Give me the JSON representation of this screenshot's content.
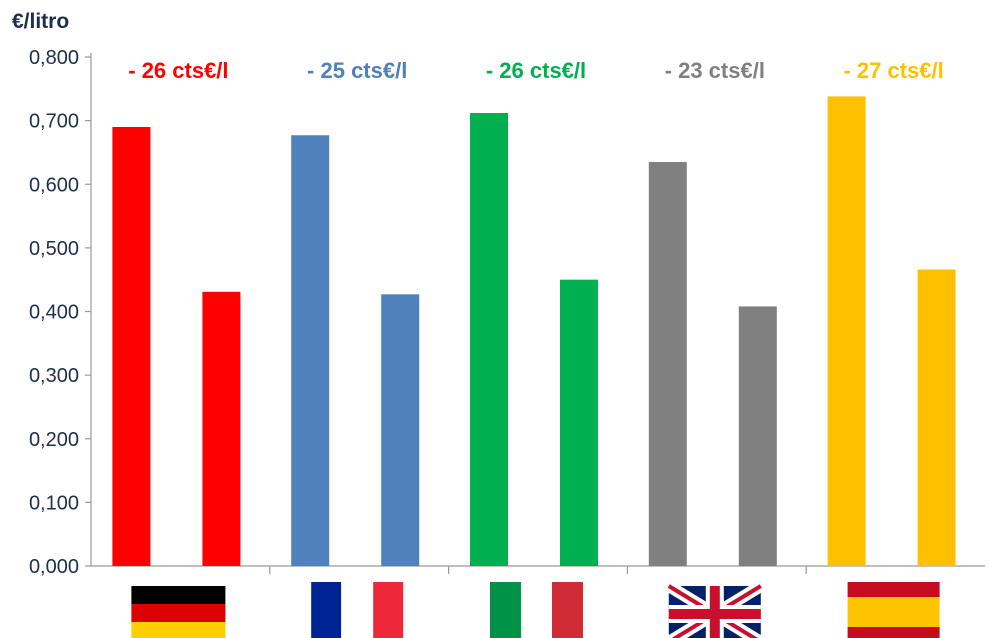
{
  "chart_data": {
    "type": "bar",
    "ylabel": "€/litro",
    "ylim": [
      0,
      0.8
    ],
    "yticks": [
      "0,000",
      "0,100",
      "0,200",
      "0,300",
      "0,400",
      "0,500",
      "0,600",
      "0,700",
      "0,800"
    ],
    "grid": false,
    "categories": [
      {
        "country": "Germany",
        "flag": "germany-flag",
        "color": "#ff0000",
        "values": [
          0.69,
          0.431
        ],
        "annotation": "- 26 cts€/l"
      },
      {
        "country": "France",
        "flag": "france-flag",
        "color": "#4f81bd",
        "values": [
          0.677,
          0.427
        ],
        "annotation": "- 25 cts€/l"
      },
      {
        "country": "Italy",
        "flag": "italy-flag",
        "color": "#00b050",
        "values": [
          0.712,
          0.45
        ],
        "annotation": "- 26 cts€/l"
      },
      {
        "country": "United Kingdom",
        "flag": "uk-flag",
        "color": "#808080",
        "values": [
          0.635,
          0.408
        ],
        "annotation": "- 23 cts€/l"
      },
      {
        "country": "Spain",
        "flag": "spain-flag",
        "color": "#ffc000",
        "values": [
          0.738,
          0.466
        ],
        "annotation": "- 27 cts€/l"
      }
    ]
  }
}
